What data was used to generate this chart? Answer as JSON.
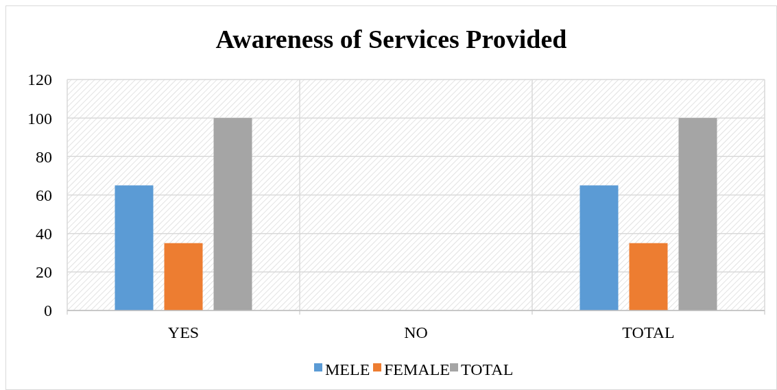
{
  "chart_data": {
    "type": "bar",
    "title": "Awareness of Services Provided",
    "categories": [
      "YES",
      "NO",
      "TOTAL"
    ],
    "series": [
      {
        "name": "MELE",
        "color": "#5b9bd5",
        "values": [
          65,
          0,
          65
        ]
      },
      {
        "name": "FEMALE",
        "color": "#ed7d31",
        "values": [
          35,
          0,
          35
        ]
      },
      {
        "name": "TOTAL",
        "color": "#a5a5a5",
        "values": [
          100,
          0,
          100
        ]
      }
    ],
    "ylim": [
      0,
      120
    ],
    "yticks": [
      0,
      20,
      40,
      60,
      80,
      100,
      120
    ],
    "grid": true,
    "legend": "bottom"
  }
}
